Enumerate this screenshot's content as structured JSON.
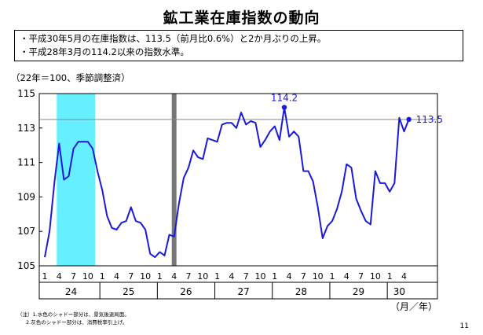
{
  "page": {
    "title": "鉱工業在庫指数の動向",
    "bullets": [
      "・平成30年5月の在庫指数は、113.5（前月比0.6%）と2か月ぶりの上昇。",
      "・平成28年3月の114.2以来の指数水準。"
    ],
    "notes": [
      "（注）1.水色のシャドー部分は、景気後退局面。",
      "2.灰色のシャドー部分は、消費税率引上げ。"
    ],
    "page_number": "11"
  },
  "chart_data": {
    "type": "line",
    "title": "",
    "ylabel": "（22年＝100、季節調整済）",
    "xlabel": "（月／年）",
    "ylim": [
      105,
      115
    ],
    "yticks": [
      105,
      107,
      109,
      111,
      113,
      115
    ],
    "x_start": "2012-01",
    "month_tick_labels": [
      "1",
      "4",
      "7",
      "10"
    ],
    "year_labels": [
      "24",
      "25",
      "26",
      "27",
      "28",
      "29",
      "30"
    ],
    "series": [
      {
        "name": "",
        "color": "#1a1adb",
        "values": [
          105.5,
          107.0,
          109.8,
          112.1,
          110.0,
          110.2,
          111.8,
          112.2,
          112.2,
          112.2,
          111.8,
          110.5,
          109.4,
          107.9,
          107.2,
          107.1,
          107.5,
          107.6,
          108.4,
          107.6,
          107.5,
          107.1,
          105.7,
          105.5,
          105.8,
          105.6,
          106.8,
          106.7,
          108.6,
          110.1,
          110.7,
          111.7,
          111.3,
          111.2,
          112.4,
          112.3,
          112.2,
          113.2,
          113.3,
          113.3,
          113.0,
          113.9,
          113.2,
          113.4,
          113.3,
          111.9,
          112.3,
          112.8,
          113.1,
          112.3,
          114.2,
          112.5,
          112.8,
          112.5,
          110.5,
          110.5,
          109.9,
          108.4,
          106.6,
          107.3,
          107.6,
          108.3,
          109.3,
          110.9,
          110.7,
          108.9,
          108.2,
          107.6,
          107.4,
          110.5,
          109.8,
          109.8,
          109.3,
          109.8,
          113.6,
          112.8,
          113.5
        ]
      }
    ],
    "annotations": [
      {
        "label": "114.2",
        "index": 50,
        "value": 114.2
      },
      {
        "label": "113.5",
        "index": 76,
        "value": 113.5
      }
    ],
    "reference_line": {
      "value": 113.5,
      "color": "#888888"
    },
    "shaded_regions": [
      {
        "kind": "recession",
        "start": "2012-04",
        "end": "2012-11",
        "color": "#66f0ff"
      },
      {
        "kind": "consumption-tax-hike",
        "date": "2014-04",
        "color": "#777777"
      }
    ],
    "grid": false,
    "legend": "none"
  }
}
